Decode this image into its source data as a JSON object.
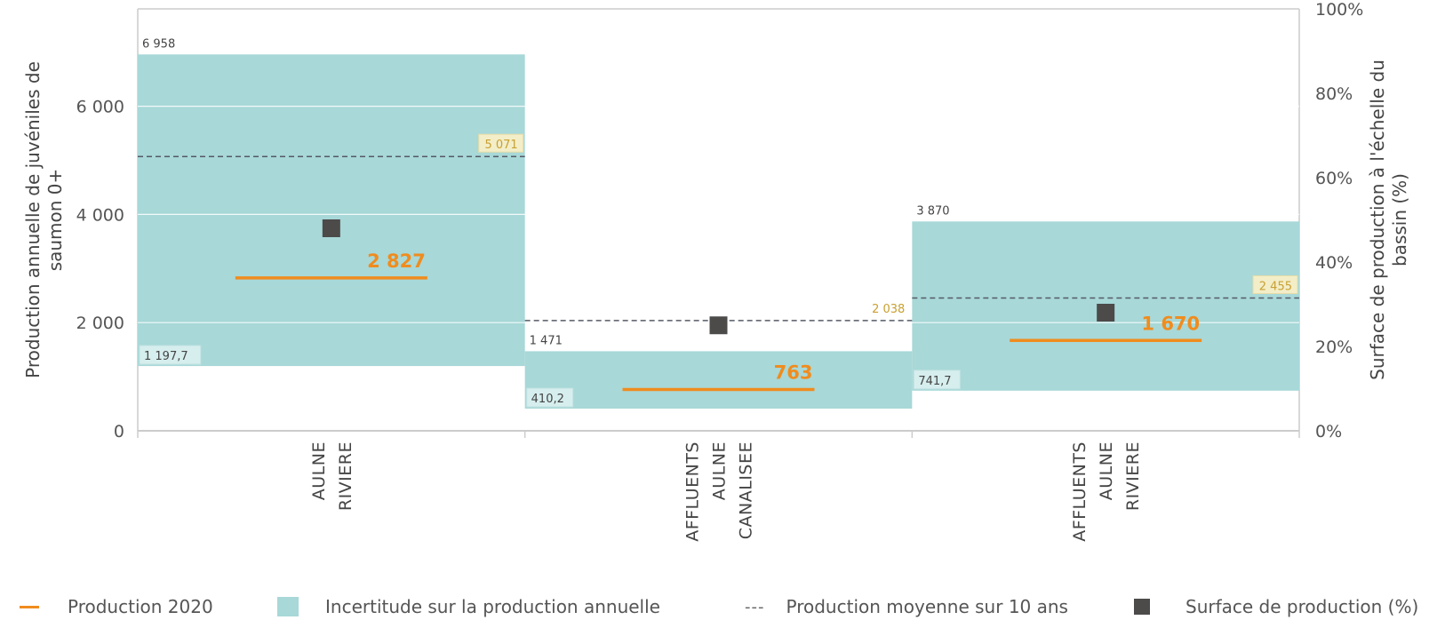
{
  "chart_data": {
    "type": "bar",
    "categories": [
      [
        "AULNE",
        "RIVIERE"
      ],
      [
        "AFFLUENTS",
        "AULNE",
        "CANALISEE"
      ],
      [
        "AFFLUENTS",
        "AULNE",
        "RIVIERE"
      ]
    ],
    "y_left": {
      "label": [
        "Production annuelle de juvéniles de",
        "saumon 0+"
      ],
      "ticks": [
        0,
        2000,
        4000,
        6000
      ],
      "tick_labels": [
        "0",
        "2 000",
        "4 000",
        "6 000"
      ],
      "ylim": [
        0,
        7800
      ]
    },
    "y_right": {
      "label": [
        "Surface de production à l'échelle du",
        "bassin (%)"
      ],
      "ticks": [
        0,
        20,
        40,
        60,
        80,
        100
      ],
      "tick_labels": [
        "0%",
        "20%",
        "40%",
        "60%",
        "80%",
        "100%"
      ],
      "ylim": [
        0,
        100
      ]
    },
    "series": [
      {
        "name": "Incertitude sur la production annuelle",
        "low": [
          1197.7,
          410.2,
          741.7
        ],
        "high": [
          6958,
          1471,
          3870
        ],
        "low_labels": [
          "1 197,7",
          "410,2",
          "741,7"
        ],
        "high_labels": [
          "6 958",
          "1 471",
          "3 870"
        ]
      },
      {
        "name": "Production 2020",
        "values": [
          2827,
          763,
          1670
        ],
        "labels": [
          "2 827",
          "763",
          "1 670"
        ]
      },
      {
        "name": "Production moyenne sur 10 ans",
        "values": [
          5071,
          2038,
          2455
        ],
        "labels": [
          "5 071",
          "2 038",
          "2 455"
        ]
      },
      {
        "name": "Surface de production (%)",
        "values": [
          48,
          25,
          28
        ]
      }
    ],
    "grid": true,
    "legend_position": "bottom"
  },
  "legend": {
    "line_label": "Production 2020",
    "box_label": "Incertitude sur la production annuelle",
    "dash_glyph": "---",
    "dash_label": "Production moyenne sur 10 ans",
    "square_label": "Surface de production (%)"
  },
  "colors": {
    "band": "#a8d8d8",
    "production": "#f08c1e",
    "mean_dashed": "#555a66",
    "mean_label": "#c8a032",
    "surface": "#4d4a4a",
    "grid": "#e6e6e6",
    "axis": "#cccccc"
  }
}
